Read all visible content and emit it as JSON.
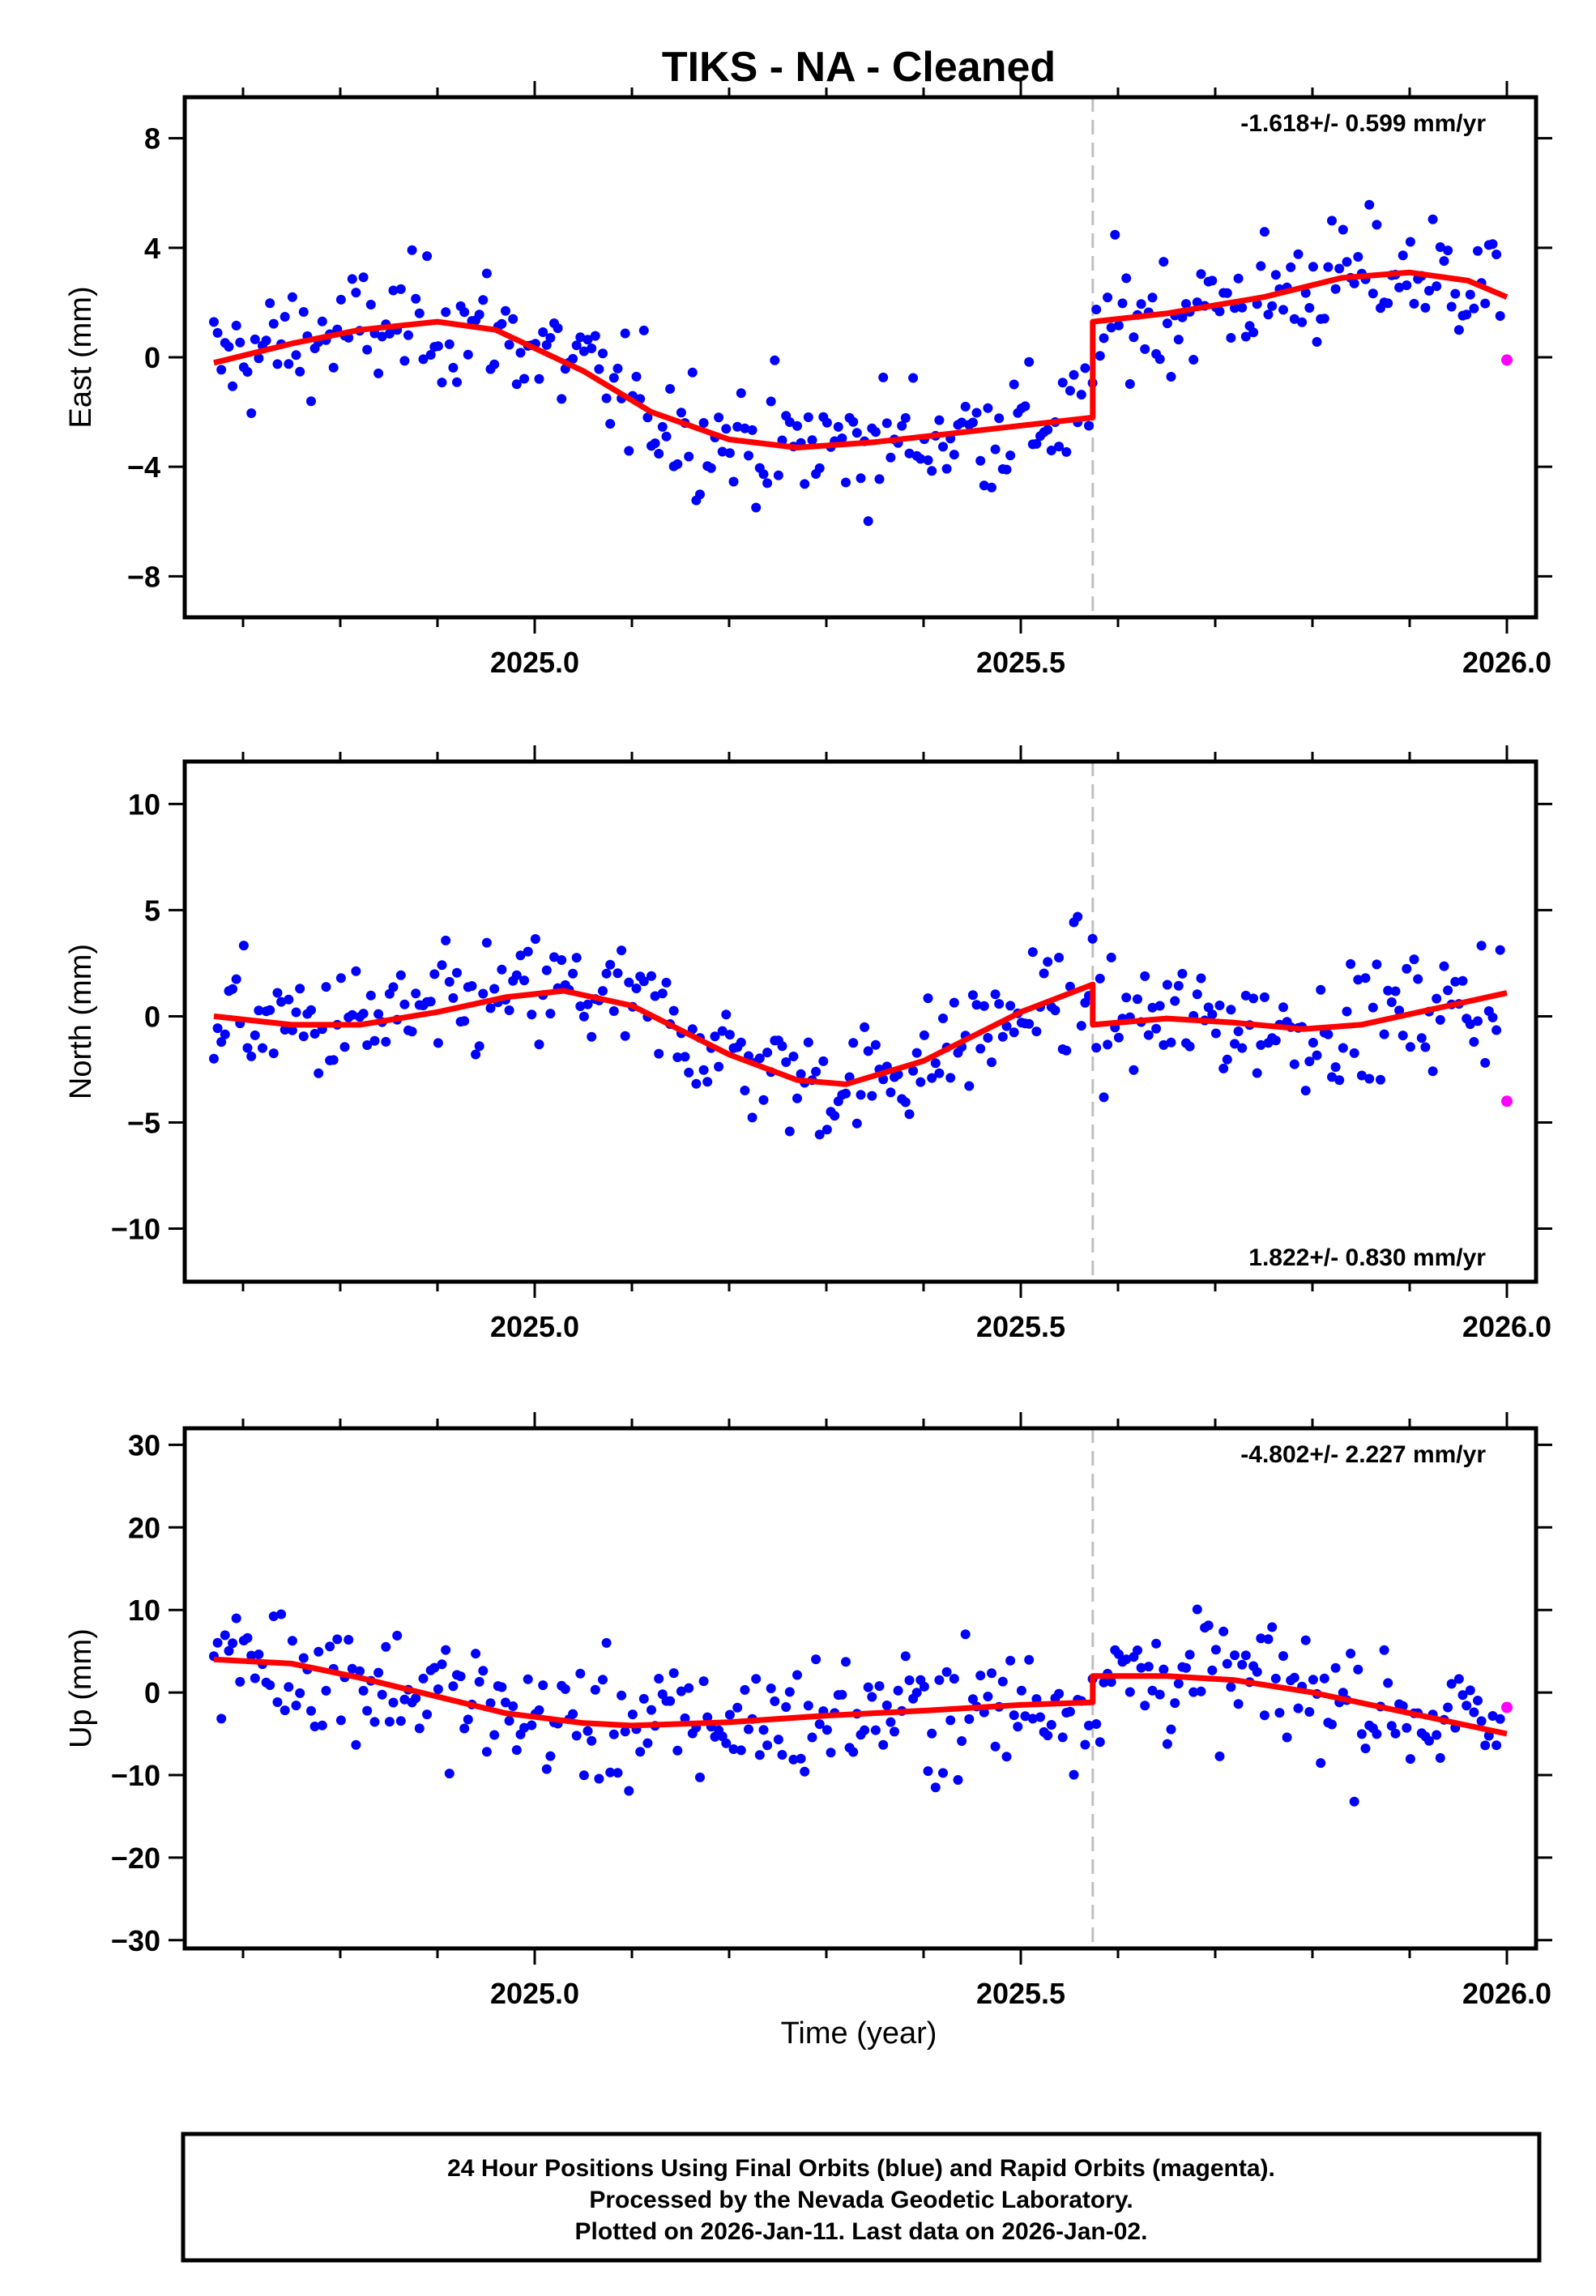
{
  "chart_data": {
    "type": "scatter",
    "title": "TIKS  - NA - Cleaned",
    "xlabel": "Time (year)",
    "xlim": [
      2024.64,
      2026.03
    ],
    "x_ticks": [
      2025.0,
      2025.5,
      2026.0
    ],
    "x_tick_labels": [
      "2025.0",
      "2025.5",
      "2026.0"
    ],
    "offset_epoch": 2025.574,
    "panels": [
      {
        "id": "east",
        "ylabel": "East (mm)",
        "ylim": [
          -9.5,
          9.5
        ],
        "y_ticks": [
          8,
          4,
          0,
          -4,
          -8
        ],
        "y_tick_labels": [
          "8",
          "4",
          "0",
          "−4",
          "−8"
        ],
        "rate_label": "-1.618+/- 0.599 mm/yr",
        "rate_position": "top-right",
        "model": {
          "x": [
            2024.67,
            2024.75,
            2024.82,
            2024.9,
            2024.96,
            2025.05,
            2025.12,
            2025.2,
            2025.27,
            2025.35,
            2025.45,
            2025.574,
            2025.574,
            2025.65,
            2025.75,
            2025.83,
            2025.9,
            2025.96,
            2026.0
          ],
          "y": [
            -0.2,
            0.5,
            1.0,
            1.3,
            1.0,
            -0.5,
            -2.0,
            -3.0,
            -3.3,
            -3.1,
            -2.7,
            -2.2,
            1.3,
            1.6,
            2.2,
            2.9,
            3.1,
            2.8,
            2.2
          ]
        },
        "rapid": [
          {
            "x": 2026.0,
            "y": -0.1
          }
        ]
      },
      {
        "id": "north",
        "ylabel": "North (mm)",
        "ylim": [
          -12.5,
          12
        ],
        "y_ticks": [
          10,
          5,
          0,
          -5,
          -10
        ],
        "y_tick_labels": [
          "10",
          "5",
          "0",
          "−5",
          "−10"
        ],
        "rate_label": "1.822+/- 0.830 mm/yr",
        "rate_position": "bottom-right",
        "model": {
          "x": [
            2024.67,
            2024.75,
            2024.82,
            2024.9,
            2024.97,
            2025.03,
            2025.1,
            2025.2,
            2025.27,
            2025.32,
            2025.4,
            2025.5,
            2025.574,
            2025.574,
            2025.65,
            2025.72,
            2025.79,
            2025.85,
            2025.92,
            2026.0
          ],
          "y": [
            0.0,
            -0.4,
            -0.4,
            0.2,
            0.9,
            1.2,
            0.5,
            -1.8,
            -3.0,
            -3.2,
            -2.1,
            0.2,
            1.5,
            -0.4,
            -0.1,
            -0.3,
            -0.6,
            -0.4,
            0.3,
            1.1
          ]
        },
        "rapid": [
          {
            "x": 2026.0,
            "y": -4.0
          }
        ]
      },
      {
        "id": "up",
        "ylabel": "Up (mm)",
        "ylim": [
          -31,
          32
        ],
        "y_ticks": [
          30,
          20,
          10,
          0,
          -10,
          -20,
          -30
        ],
        "y_tick_labels": [
          "30",
          "20",
          "10",
          "0",
          "−10",
          "−20",
          "−30"
        ],
        "rate_label": "-4.802+/- 2.227 mm/yr",
        "rate_position": "top-right",
        "model": {
          "x": [
            2024.67,
            2024.75,
            2024.82,
            2024.9,
            2024.97,
            2025.05,
            2025.1,
            2025.2,
            2025.3,
            2025.4,
            2025.5,
            2025.574,
            2025.574,
            2025.65,
            2025.72,
            2025.8,
            2025.9,
            2026.0
          ],
          "y": [
            4.0,
            3.5,
            1.8,
            -0.5,
            -2.5,
            -3.7,
            -4.0,
            -3.6,
            -2.8,
            -2.2,
            -1.5,
            -1.2,
            2.0,
            2.0,
            1.5,
            0.0,
            -2.5,
            -5.0
          ]
        },
        "rapid": [
          {
            "x": 2026.0,
            "y": -1.8
          }
        ]
      }
    ],
    "series": [
      {
        "name": "Final Orbits",
        "color": "#0000ff"
      },
      {
        "name": "Rapid Orbits",
        "color": "#ff00ff"
      },
      {
        "name": "Model fit",
        "color": "#ff0000"
      },
      {
        "name": "Offset",
        "color": "#c0c0c0"
      }
    ]
  },
  "caption": {
    "line1": "24 Hour Positions Using Final Orbits (blue) and Rapid Orbits (magenta).",
    "line2": "Processed by the Nevada Geodetic Laboratory.",
    "line3": "Plotted on 2026-Jan-11. Last data on 2026-Jan-02."
  }
}
